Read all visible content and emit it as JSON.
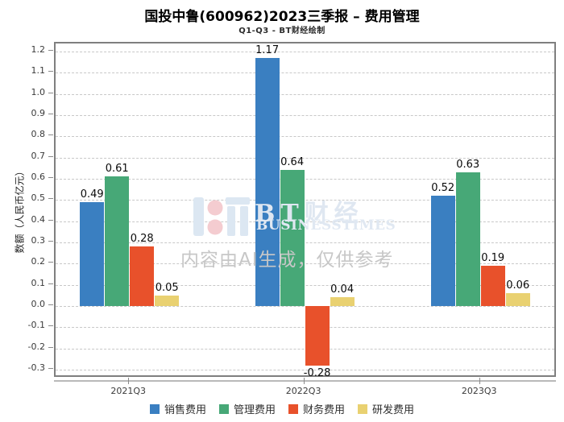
{
  "chart_data": {
    "type": "bar",
    "title": "国投中鲁(600962)2023三季报 – 费用管理",
    "subtitle": "Q1-Q3 - BT财经绘制",
    "ylabel": "数额（人民币亿元）",
    "categories": [
      "2021Q3",
      "2022Q3",
      "2023Q3"
    ],
    "series": [
      {
        "name": "销售费用",
        "color": "#3a7fc1",
        "values": [
          0.49,
          1.17,
          0.52
        ]
      },
      {
        "name": "管理费用",
        "color": "#47a877",
        "values": [
          0.61,
          0.64,
          0.63
        ]
      },
      {
        "name": "财务费用",
        "color": "#e8512b",
        "values": [
          0.28,
          -0.28,
          0.19
        ]
      },
      {
        "name": "研发费用",
        "color": "#e9d171",
        "values": [
          0.05,
          0.04,
          0.06
        ]
      }
    ],
    "ylim": [
      -0.342,
      1.238
    ],
    "yticks": {
      "min": -0.3,
      "max": 1.2,
      "step": 0.1
    },
    "grid": "horizontal-dashed",
    "legend_position": "bottom"
  },
  "watermark": {
    "brand": "BT财经",
    "brand_sub": "BUSINESSTIMES",
    "ai_note": "内容由AI生成，仅供参考"
  }
}
